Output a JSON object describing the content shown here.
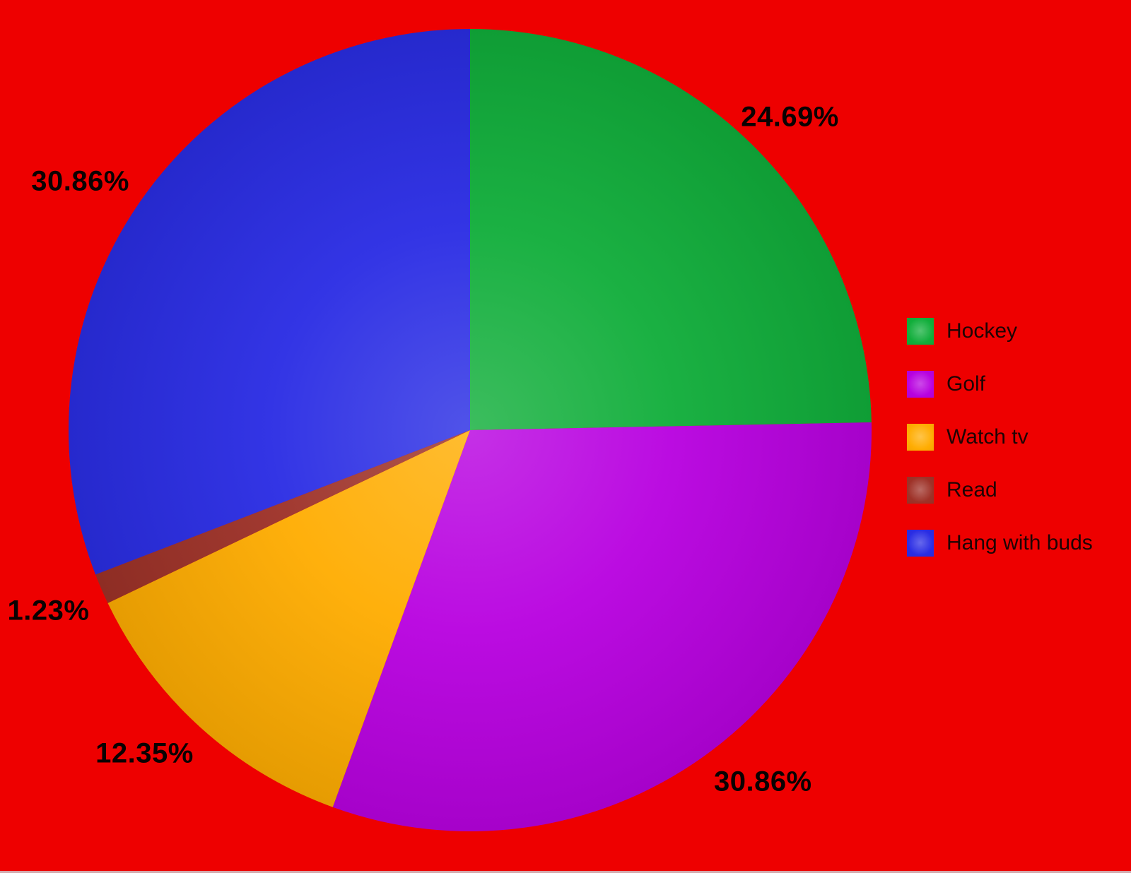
{
  "chart_data": {
    "type": "pie",
    "title": "",
    "categories": [
      "Hockey",
      "Golf",
      "Watch tv",
      "Read",
      "Hang with buds"
    ],
    "values": [
      24.69,
      30.86,
      12.35,
      1.23,
      30.86
    ],
    "labels": [
      "24.69%",
      "30.86%",
      "12.35%",
      "1.23%",
      "30.86%"
    ],
    "colors": [
      "#11AE3B",
      "#B802E0",
      "#FFAD02",
      "#9E3228",
      "#2A2DE4"
    ],
    "background": "#EE0000",
    "start_angle_deg": 0,
    "direction": "clockwise",
    "legend_position": "right",
    "legend_text_color": "#1e0404",
    "label_text_color": "#0a0202"
  }
}
